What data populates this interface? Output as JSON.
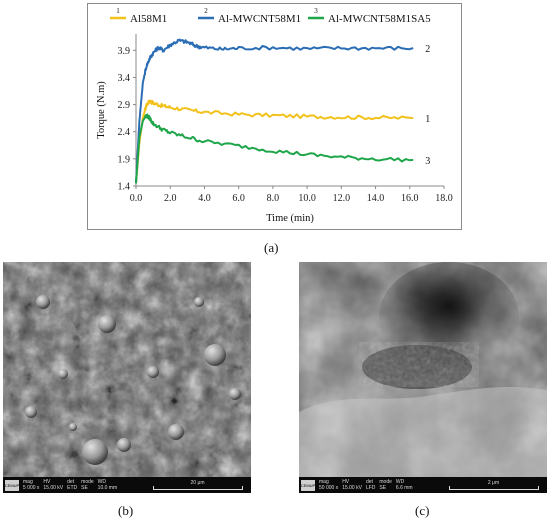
{
  "chart_data": {
    "type": "line",
    "xlabel": "Time (min)",
    "ylabel": "Torque (N.m)",
    "xlim": [
      0.0,
      18.0
    ],
    "ylim": [
      1.4,
      4.2
    ],
    "xticks": [
      "0.0",
      "2.0",
      "4.0",
      "6.0",
      "8.0",
      "10.0",
      "12.0",
      "14.0",
      "16.0",
      "18.0"
    ],
    "yticks": [
      "1.4",
      "1.9",
      "2.4",
      "2.9",
      "3.4",
      "3.9"
    ],
    "legend_position": "top",
    "series": [
      {
        "name": "Al58M1",
        "number": "1",
        "end_label": "1",
        "color": "#f2c21b",
        "x": [
          0.0,
          0.2,
          0.4,
          0.6,
          0.8,
          1.0,
          1.5,
          2.0,
          3.0,
          4.0,
          6.0,
          8.0,
          10.0,
          12.0,
          14.0,
          16.2
        ],
        "y": [
          1.45,
          2.2,
          2.65,
          2.88,
          2.97,
          2.93,
          2.88,
          2.85,
          2.8,
          2.76,
          2.72,
          2.7,
          2.68,
          2.67,
          2.66,
          2.65
        ]
      },
      {
        "name": "Al-MWCNT58M1",
        "number": "2",
        "end_label": "2",
        "color": "#2a6db5",
        "x": [
          0.0,
          0.2,
          0.4,
          0.6,
          0.8,
          1.0,
          1.3,
          1.6,
          2.0,
          2.5,
          3.0,
          3.5,
          4.0,
          5.0,
          6.0,
          8.0,
          10.0,
          12.0,
          14.0,
          16.2
        ],
        "y": [
          1.45,
          2.6,
          3.3,
          3.6,
          3.75,
          3.85,
          3.95,
          3.9,
          4.0,
          4.08,
          4.05,
          3.98,
          3.95,
          3.92,
          3.94,
          3.95,
          3.93,
          3.94,
          3.94,
          3.94
        ]
      },
      {
        "name": "Al-MWCNT58M1SA5",
        "number": "3",
        "end_label": "3",
        "color": "#1fa64a",
        "x": [
          0.0,
          0.2,
          0.4,
          0.6,
          0.8,
          1.0,
          1.5,
          2.0,
          3.0,
          4.0,
          6.0,
          8.0,
          10.0,
          12.0,
          14.0,
          16.2
        ],
        "y": [
          1.45,
          2.3,
          2.6,
          2.7,
          2.65,
          2.55,
          2.45,
          2.38,
          2.3,
          2.22,
          2.14,
          2.05,
          1.98,
          1.93,
          1.9,
          1.88
        ]
      }
    ]
  },
  "captions": {
    "a": "(a)",
    "b": "(b)",
    "c": "(c)"
  },
  "sem_b": {
    "logo": "CEMUP",
    "fields": [
      {
        "label": "mag",
        "value": "5 000 x"
      },
      {
        "label": "HV",
        "value": "15.00 kV"
      },
      {
        "label": "det",
        "value": "ETD"
      },
      {
        "label": "mode",
        "value": "SE"
      },
      {
        "label": "WD",
        "value": "10.0 mm"
      }
    ],
    "scale": "20 μm"
  },
  "sem_c": {
    "logo": "CEMUP",
    "fields": [
      {
        "label": "mag",
        "value": "50 000 x"
      },
      {
        "label": "HV",
        "value": "15.00 kV"
      },
      {
        "label": "det",
        "value": "LFD"
      },
      {
        "label": "mode",
        "value": "SE"
      },
      {
        "label": "WD",
        "value": "6.6 mm"
      }
    ],
    "scale": "2 μm"
  }
}
